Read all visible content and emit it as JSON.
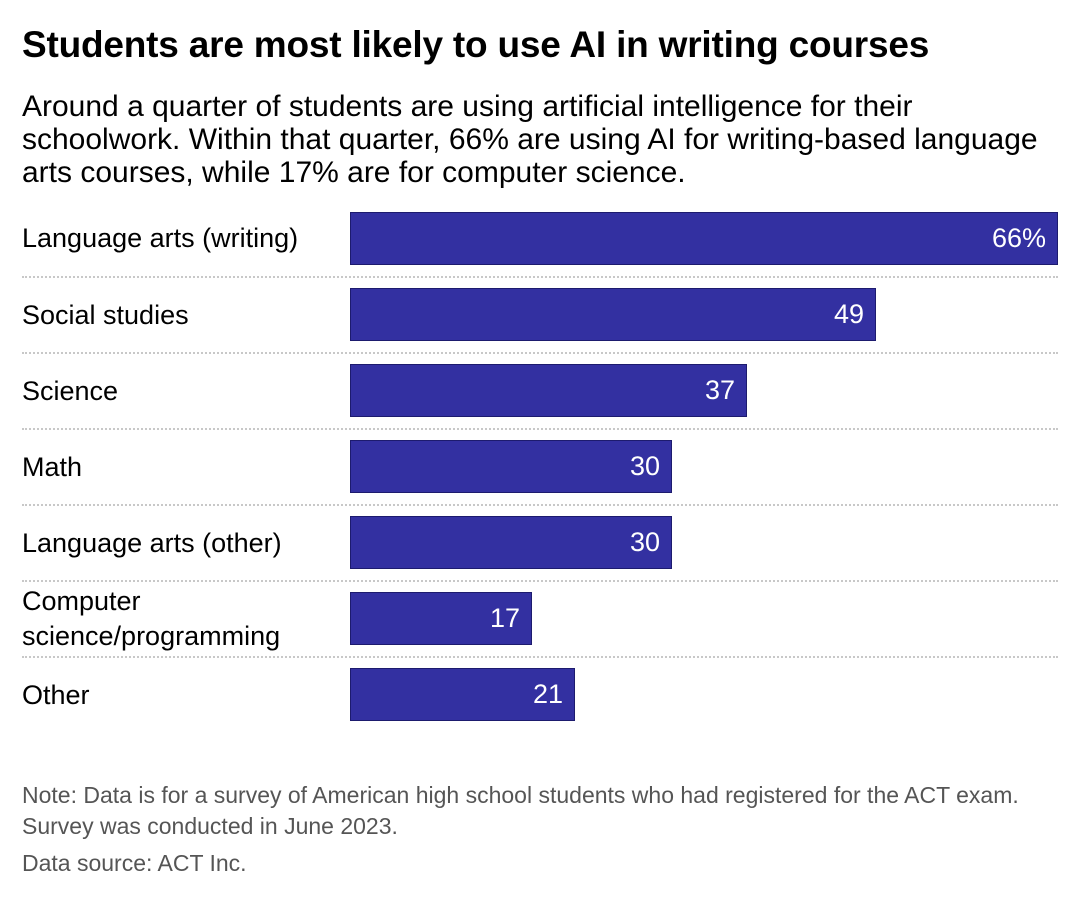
{
  "chart_data": {
    "type": "bar",
    "orientation": "horizontal",
    "title": "Students are most likely to use AI in writing courses",
    "subtitle": "Around a quarter of students are using artificial intelligence for their schoolwork. Within that quarter, 66% are using AI for writing-based language arts courses, while 17% are for computer science.",
    "categories": [
      "Language arts (writing)",
      "Social studies",
      "Science",
      "Math",
      "Language arts (other)",
      "Computer science/programming",
      "Other"
    ],
    "values": [
      66,
      49,
      37,
      30,
      30,
      17,
      21
    ],
    "value_labels": [
      "66%",
      "49",
      "37",
      "30",
      "30",
      "17",
      "21"
    ],
    "xlim": [
      0,
      66
    ],
    "grid": false,
    "legend": "none",
    "bar_color": "#3330a1",
    "note": "Note: Data is for a survey of American high school students who had registered for the ACT exam. Survey was conducted in June 2023.",
    "source": "Data source: ACT Inc."
  }
}
